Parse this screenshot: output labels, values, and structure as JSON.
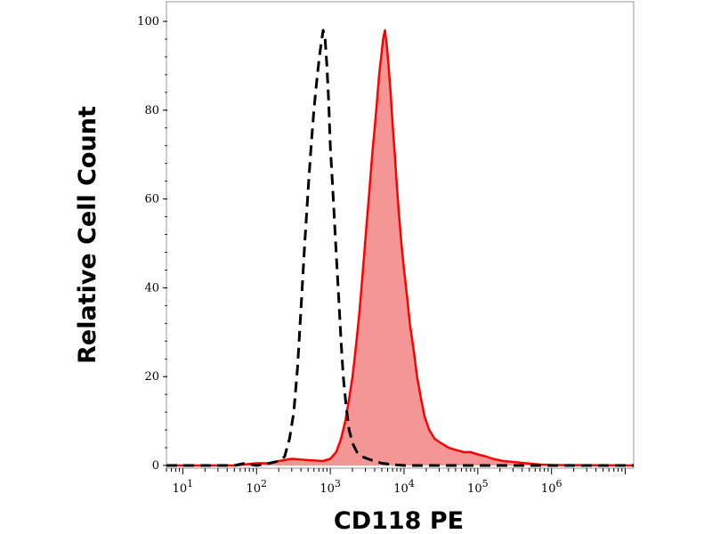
{
  "chart_data": {
    "type": "area",
    "xlabel": "CD118 PE",
    "ylabel": "Relative Cell Count",
    "x_scale": "log",
    "xlim": [
      6,
      13000000
    ],
    "ylim": [
      0,
      100
    ],
    "x_ticks": [
      {
        "value": 10,
        "base": "10",
        "exp": "1"
      },
      {
        "value": 100,
        "base": "10",
        "exp": "2"
      },
      {
        "value": 1000,
        "base": "10",
        "exp": "3"
      },
      {
        "value": 10000,
        "base": "10",
        "exp": "4"
      },
      {
        "value": 100000,
        "base": "10",
        "exp": "5"
      },
      {
        "value": 1000000,
        "base": "10",
        "exp": "6"
      }
    ],
    "y_ticks": [
      {
        "value": 0,
        "label": "0"
      },
      {
        "value": 20,
        "label": "20"
      },
      {
        "value": 40,
        "label": "40"
      },
      {
        "value": 60,
        "label": "60"
      },
      {
        "value": 80,
        "label": "80"
      },
      {
        "value": 100,
        "label": "100"
      }
    ],
    "grid": false,
    "series": [
      {
        "style": "dashed",
        "color": "#000000",
        "fill": "none",
        "points": [
          [
            6,
            0
          ],
          [
            50,
            0
          ],
          [
            70,
            0.5
          ],
          [
            100,
            0
          ],
          [
            150,
            0.5
          ],
          [
            200,
            1
          ],
          [
            240,
            2
          ],
          [
            280,
            6
          ],
          [
            320,
            12
          ],
          [
            360,
            22
          ],
          [
            400,
            35
          ],
          [
            450,
            50
          ],
          [
            500,
            62
          ],
          [
            550,
            72
          ],
          [
            600,
            80
          ],
          [
            650,
            86
          ],
          [
            700,
            91
          ],
          [
            750,
            95
          ],
          [
            800,
            98
          ],
          [
            850,
            96
          ],
          [
            900,
            90
          ],
          [
            950,
            82
          ],
          [
            1000,
            72
          ],
          [
            1100,
            60
          ],
          [
            1200,
            48
          ],
          [
            1300,
            38
          ],
          [
            1400,
            28
          ],
          [
            1500,
            20
          ],
          [
            1650,
            13
          ],
          [
            1800,
            8
          ],
          [
            2000,
            5
          ],
          [
            2300,
            3
          ],
          [
            2700,
            2
          ],
          [
            3200,
            1.5
          ],
          [
            4000,
            1
          ],
          [
            5000,
            0.5
          ],
          [
            7000,
            0.2
          ],
          [
            10000,
            0
          ],
          [
            13000000,
            0
          ]
        ]
      },
      {
        "style": "solid",
        "color": "#ff0000",
        "fill": "#f59696",
        "points": [
          [
            6,
            0
          ],
          [
            50,
            0
          ],
          [
            100,
            0.5
          ],
          [
            150,
            0.5
          ],
          [
            200,
            1
          ],
          [
            300,
            1.5
          ],
          [
            500,
            1.2
          ],
          [
            800,
            1
          ],
          [
            1000,
            1.5
          ],
          [
            1200,
            3
          ],
          [
            1400,
            6
          ],
          [
            1600,
            10
          ],
          [
            1800,
            15
          ],
          [
            2000,
            20
          ],
          [
            2200,
            26
          ],
          [
            2500,
            35
          ],
          [
            2800,
            45
          ],
          [
            3100,
            54
          ],
          [
            3400,
            62
          ],
          [
            3700,
            70
          ],
          [
            4000,
            76
          ],
          [
            4300,
            82
          ],
          [
            4600,
            88
          ],
          [
            4900,
            92
          ],
          [
            5200,
            96
          ],
          [
            5500,
            98
          ],
          [
            5800,
            95
          ],
          [
            6100,
            91
          ],
          [
            6500,
            85
          ],
          [
            7000,
            77
          ],
          [
            7500,
            70
          ],
          [
            8000,
            63
          ],
          [
            8600,
            56
          ],
          [
            9200,
            50
          ],
          [
            10000,
            44
          ],
          [
            11000,
            38
          ],
          [
            12000,
            32
          ],
          [
            13500,
            26
          ],
          [
            15000,
            20
          ],
          [
            17000,
            15
          ],
          [
            19000,
            11
          ],
          [
            22000,
            8
          ],
          [
            26000,
            6
          ],
          [
            32000,
            5
          ],
          [
            40000,
            4
          ],
          [
            50000,
            3.5
          ],
          [
            65000,
            3
          ],
          [
            80000,
            3
          ],
          [
            100000,
            2.5
          ],
          [
            130000,
            2
          ],
          [
            160000,
            1.5
          ],
          [
            220000,
            1
          ],
          [
            300000,
            0.8
          ],
          [
            450000,
            0.5
          ],
          [
            700000,
            0.2
          ],
          [
            1000000,
            0.1
          ],
          [
            13000000,
            0
          ]
        ]
      }
    ]
  }
}
